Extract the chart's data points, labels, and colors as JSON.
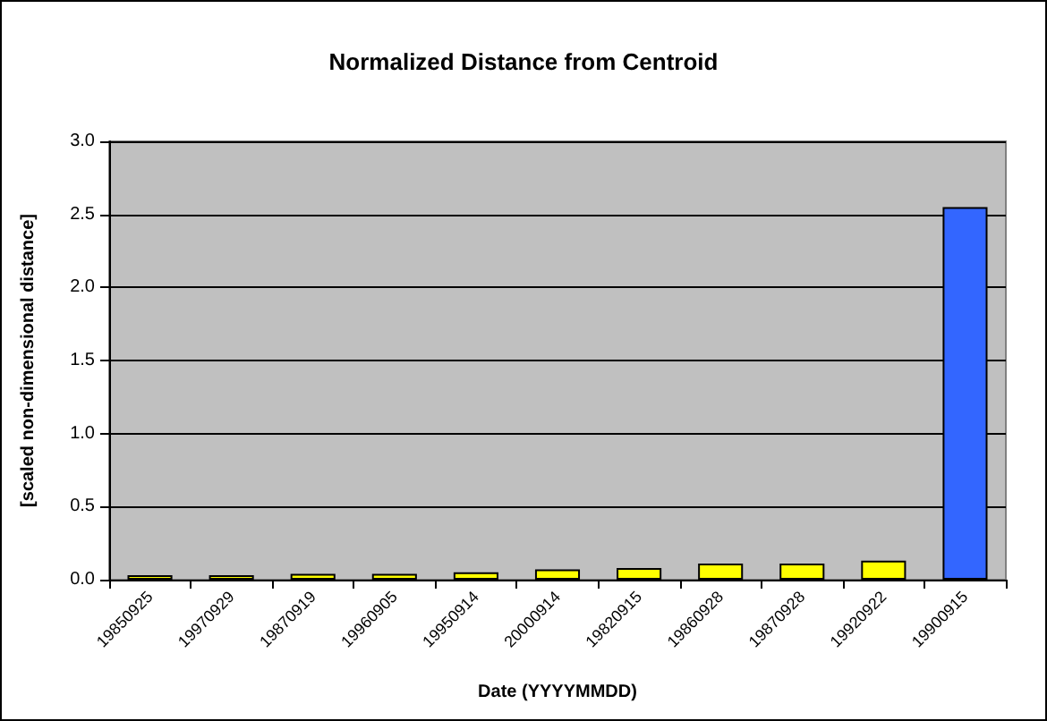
{
  "chart_data": {
    "type": "bar",
    "title": "Normalized Distance from Centroid",
    "xlabel": "Date (YYYYMMDD)",
    "ylabel": "[scaled non-dimensional distance]",
    "categories": [
      "19850925",
      "19970929",
      "19870919",
      "19960905",
      "19950914",
      "20000914",
      "19820915",
      "19860928",
      "19870928",
      "19920922",
      "19900915"
    ],
    "values": [
      0.03,
      0.03,
      0.04,
      0.04,
      0.05,
      0.07,
      0.08,
      0.11,
      0.11,
      0.13,
      2.55
    ],
    "colors": [
      "#ffff00",
      "#ffff00",
      "#ffff00",
      "#ffff00",
      "#ffff00",
      "#ffff00",
      "#ffff00",
      "#ffff00",
      "#ffff00",
      "#ffff00",
      "#3366ff"
    ],
    "ylim": [
      0,
      3
    ],
    "yticks": [
      {
        "value": 0,
        "label": "0.0"
      },
      0.5,
      {
        "value": 1,
        "label": "1.0"
      },
      1.5,
      {
        "value": 2,
        "label": "2.0"
      },
      2.5,
      {
        "value": 3,
        "label": "3.0"
      }
    ],
    "grid": "y"
  }
}
